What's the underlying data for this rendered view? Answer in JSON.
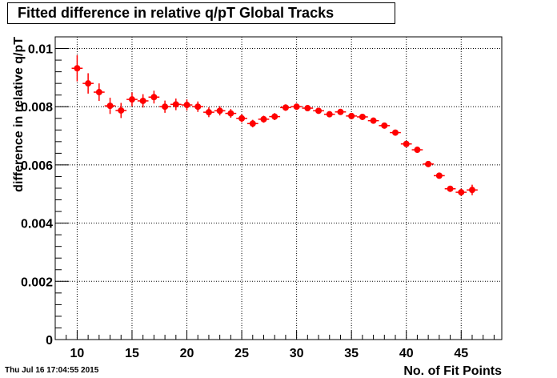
{
  "chart_data": {
    "type": "scatter",
    "title": "Fitted difference in relative q/pT  Global Tracks",
    "xlabel": "No. of Fit Points",
    "ylabel": "difference in relative q/pT",
    "xlim": [
      8.0,
      48.7
    ],
    "ylim": [
      0,
      0.0104
    ],
    "xticks": [
      10,
      15,
      20,
      25,
      30,
      35,
      40,
      45
    ],
    "yticks": [
      0,
      0.002,
      0.004,
      0.006,
      0.008,
      0.01
    ],
    "ytick_labels": [
      "0",
      "0.002",
      "0.004",
      "0.006",
      "0.008",
      "0.01"
    ],
    "grid": true,
    "marker_color": "#ff0000",
    "series": [
      {
        "x": [
          10,
          11,
          12,
          13,
          14,
          15,
          16,
          17,
          18,
          19,
          20,
          21,
          22,
          23,
          24,
          25,
          26,
          27,
          28,
          29,
          30,
          31,
          32,
          33,
          34,
          35,
          36,
          37,
          38,
          39,
          40,
          41,
          42,
          43,
          44,
          45,
          46
        ],
        "y": [
          0.00932,
          0.0088,
          0.0085,
          0.00803,
          0.00787,
          0.00825,
          0.0082,
          0.00833,
          0.008,
          0.00808,
          0.00806,
          0.008,
          0.00781,
          0.00786,
          0.00777,
          0.0076,
          0.00742,
          0.00757,
          0.00766,
          0.00797,
          0.008,
          0.00795,
          0.00786,
          0.00774,
          0.00782,
          0.00768,
          0.00765,
          0.00752,
          0.00735,
          0.00711,
          0.00672,
          0.00652,
          0.00603,
          0.00563,
          0.00518,
          0.00506,
          0.00514
        ],
        "yerr": [
          0.00045,
          0.00035,
          0.0003,
          0.00028,
          0.00026,
          0.00024,
          0.00023,
          0.00022,
          0.00021,
          0.0002,
          0.00019,
          0.00018,
          0.00017,
          0.00016,
          0.00015,
          0.00014,
          0.00013,
          0.00012,
          0.00012,
          0.00011,
          0.00011,
          0.0001,
          0.0001,
          9e-05,
          9e-05,
          9e-05,
          8e-05,
          8e-05,
          8e-05,
          8e-05,
          8e-05,
          8e-05,
          8e-05,
          9e-05,
          0.0001,
          0.00012,
          0.00018
        ]
      }
    ]
  },
  "timestamp": "Thu Jul 16 17:04:55 2015"
}
